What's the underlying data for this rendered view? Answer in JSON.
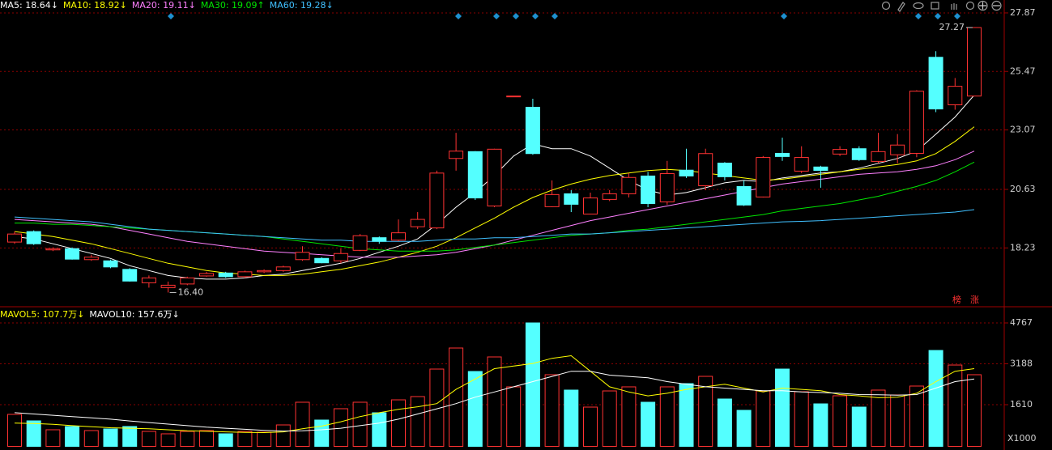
{
  "chart_data": [
    {
      "type": "candlestick",
      "ylim": [
        15.85,
        28.4
      ],
      "yticks": [
        18.23,
        20.63,
        23.07,
        25.47,
        27.87
      ],
      "up_color": "#ff3232",
      "down_color": "#54ffff",
      "grid": true,
      "open": [
        18.47,
        18.9,
        18.15,
        18.2,
        17.75,
        17.7,
        17.35,
        16.8,
        16.6,
        16.75,
        17.08,
        17.2,
        17.05,
        17.25,
        17.3,
        17.75,
        17.8,
        17.7,
        18.13,
        18.65,
        18.55,
        19.1,
        19.05,
        21.9,
        22.18,
        19.95,
        24.46,
        24.0,
        19.92,
        20.45,
        19.62,
        20.22,
        20.45,
        21.18,
        20.12,
        21.42,
        20.78,
        21.71,
        20.75,
        20.32,
        22.11,
        21.38,
        21.55,
        22.08,
        22.3,
        21.78,
        22.05,
        22.11,
        26.05,
        24.1,
        24.46
      ],
      "high": [
        18.9,
        18.95,
        18.25,
        18.25,
        17.95,
        17.75,
        17.4,
        17.1,
        16.85,
        17.05,
        17.25,
        17.25,
        17.3,
        17.35,
        17.5,
        18.3,
        17.85,
        18.2,
        18.8,
        18.7,
        19.4,
        19.7,
        21.4,
        22.95,
        22.2,
        22.3,
        24.46,
        24.35,
        21.0,
        20.6,
        20.5,
        20.6,
        21.3,
        21.35,
        21.8,
        22.3,
        22.3,
        21.75,
        21.0,
        22.0,
        22.75,
        22.4,
        21.6,
        22.4,
        22.4,
        22.95,
        22.9,
        24.7,
        26.3,
        25.2,
        27.27
      ],
      "low": [
        18.4,
        18.35,
        18.1,
        17.75,
        17.7,
        17.4,
        16.85,
        16.6,
        16.4,
        16.7,
        17.05,
        17.0,
        17.0,
        17.2,
        17.25,
        17.7,
        17.6,
        17.6,
        18.1,
        18.4,
        18.5,
        19.0,
        19.0,
        21.4,
        20.2,
        19.9,
        24.46,
        22.05,
        19.9,
        19.7,
        19.6,
        20.15,
        20.3,
        19.9,
        20.0,
        21.1,
        20.6,
        21.0,
        19.95,
        20.3,
        21.8,
        21.3,
        20.7,
        22.0,
        21.8,
        21.7,
        21.7,
        21.95,
        23.8,
        23.9,
        24.46
      ],
      "close": [
        18.8,
        18.4,
        18.2,
        17.77,
        17.85,
        17.45,
        16.87,
        17.0,
        16.7,
        17.0,
        17.18,
        17.05,
        17.25,
        17.3,
        17.45,
        18.05,
        17.62,
        18.0,
        18.73,
        18.5,
        18.85,
        19.4,
        21.3,
        22.2,
        20.28,
        22.28,
        24.46,
        22.1,
        20.42,
        20.02,
        20.28,
        20.45,
        21.12,
        20.05,
        21.28,
        21.18,
        22.1,
        21.15,
        19.99,
        21.94,
        21.98,
        21.94,
        21.41,
        22.27,
        21.85,
        22.18,
        22.45,
        24.66,
        23.93,
        24.86,
        27.27
      ],
      "ma": [
        {
          "name": "MA5: 18.64↓",
          "color": "#ffffff",
          "values": [
            18.7,
            18.6,
            18.4,
            18.2,
            18.0,
            17.8,
            17.5,
            17.3,
            17.1,
            17.0,
            16.95,
            16.95,
            17.0,
            17.1,
            17.15,
            17.3,
            17.45,
            17.6,
            17.8,
            18.05,
            18.3,
            18.6,
            19.2,
            19.9,
            20.5,
            21.2,
            22.0,
            22.5,
            22.3,
            22.3,
            22.0,
            21.5,
            21.0,
            20.6,
            20.4,
            20.5,
            20.7,
            20.9,
            21.0,
            20.95,
            21.1,
            21.2,
            21.3,
            21.35,
            21.5,
            21.7,
            21.9,
            22.2,
            22.9,
            23.6,
            24.5
          ]
        },
        {
          "name": "MA10: 18.92↓",
          "color": "#ffff00",
          "values": [
            18.9,
            18.8,
            18.7,
            18.55,
            18.4,
            18.2,
            18.0,
            17.8,
            17.6,
            17.45,
            17.3,
            17.2,
            17.15,
            17.1,
            17.1,
            17.15,
            17.25,
            17.35,
            17.5,
            17.65,
            17.85,
            18.05,
            18.3,
            18.65,
            19.05,
            19.45,
            19.9,
            20.3,
            20.6,
            20.85,
            21.05,
            21.2,
            21.3,
            21.4,
            21.45,
            21.4,
            21.3,
            21.2,
            21.1,
            21.0,
            21.05,
            21.15,
            21.25,
            21.35,
            21.45,
            21.55,
            21.65,
            21.8,
            22.1,
            22.6,
            23.2
          ]
        },
        {
          "name": "MA20: 19.11↓",
          "color": "#ff80ff",
          "values": [
            19.4,
            19.35,
            19.3,
            19.25,
            19.2,
            19.1,
            18.95,
            18.8,
            18.65,
            18.5,
            18.4,
            18.3,
            18.2,
            18.1,
            18.05,
            18.0,
            17.95,
            17.9,
            17.85,
            17.85,
            17.85,
            17.9,
            17.95,
            18.05,
            18.2,
            18.35,
            18.55,
            18.75,
            18.95,
            19.15,
            19.35,
            19.5,
            19.65,
            19.8,
            19.95,
            20.1,
            20.25,
            20.4,
            20.55,
            20.7,
            20.85,
            20.95,
            21.05,
            21.15,
            21.25,
            21.3,
            21.35,
            21.45,
            21.6,
            21.85,
            22.2
          ]
        },
        {
          "name": "MA30: 19.09↑",
          "color": "#00e600",
          "values": [
            19.25,
            19.25,
            19.2,
            19.2,
            19.15,
            19.1,
            19.05,
            19.0,
            18.95,
            18.9,
            18.85,
            18.8,
            18.75,
            18.7,
            18.6,
            18.5,
            18.4,
            18.3,
            18.2,
            18.15,
            18.1,
            18.1,
            18.1,
            18.15,
            18.25,
            18.35,
            18.45,
            18.55,
            18.65,
            18.75,
            18.8,
            18.85,
            18.95,
            19.0,
            19.1,
            19.2,
            19.3,
            19.4,
            19.5,
            19.6,
            19.75,
            19.85,
            19.95,
            20.05,
            20.2,
            20.35,
            20.55,
            20.75,
            21.0,
            21.35,
            21.75
          ]
        },
        {
          "name": "MA60: 19.28↓",
          "color": "#40c0ff",
          "values": [
            19.5,
            19.45,
            19.4,
            19.35,
            19.3,
            19.2,
            19.1,
            19.0,
            18.95,
            18.9,
            18.85,
            18.8,
            18.75,
            18.7,
            18.65,
            18.6,
            18.55,
            18.55,
            18.5,
            18.5,
            18.5,
            18.5,
            18.55,
            18.6,
            18.6,
            18.65,
            18.65,
            18.7,
            18.75,
            18.8,
            18.8,
            18.85,
            18.9,
            18.95,
            19.0,
            19.05,
            19.1,
            19.15,
            19.2,
            19.25,
            19.3,
            19.32,
            19.35,
            19.4,
            19.45,
            19.5,
            19.55,
            19.6,
            19.65,
            19.7,
            19.8
          ]
        }
      ],
      "high_label": "27.27",
      "low_label": "16.40",
      "badges": [
        "榜",
        "涨"
      ]
    },
    {
      "type": "bar",
      "ylim": [
        0,
        5361
      ],
      "yticks": [
        1610,
        3188,
        4767
      ],
      "unit_label": "X1000",
      "grid": true,
      "values": [
        1235,
        985,
        641,
        766,
        610,
        672,
        766,
        578,
        485,
        578,
        610,
        485,
        578,
        547,
        828,
        1704,
        1016,
        1454,
        1704,
        1297,
        1797,
        1923,
        2985,
        3798,
        2892,
        3454,
        2298,
        4767,
        2767,
        2173,
        1516,
        2141,
        2298,
        1704,
        2298,
        2423,
        2704,
        1829,
        1391,
        2141,
        2985,
        2110,
        1641,
        1954,
        1516,
        2173,
        1985,
        2329,
        3704,
        3141,
        2767
      ],
      "ma": [
        {
          "name": "MAVOL5: 107.7万↓",
          "color": "#ffff00",
          "values": [
            900,
            880,
            850,
            800,
            760,
            720,
            700,
            680,
            640,
            600,
            580,
            560,
            540,
            530,
            560,
            680,
            780,
            950,
            1150,
            1300,
            1430,
            1530,
            1650,
            2200,
            2600,
            3000,
            3100,
            3200,
            3400,
            3500,
            2900,
            2300,
            2100,
            1950,
            2050,
            2200,
            2300,
            2400,
            2250,
            2100,
            2250,
            2200,
            2150,
            2000,
            1950,
            1880,
            1900,
            2050,
            2500,
            2900,
            3000
          ]
        },
        {
          "name": "MAVOL10: 157.6万↓",
          "color": "#ffffff",
          "values": [
            1300,
            1250,
            1200,
            1150,
            1100,
            1050,
            980,
            920,
            860,
            800,
            740,
            700,
            660,
            620,
            590,
            600,
            640,
            700,
            800,
            900,
            1050,
            1250,
            1450,
            1650,
            1900,
            2100,
            2300,
            2500,
            2700,
            2900,
            2900,
            2750,
            2700,
            2650,
            2500,
            2400,
            2300,
            2250,
            2200,
            2150,
            2150,
            2100,
            2080,
            2050,
            2000,
            1990,
            1980,
            2000,
            2250,
            2500,
            2600
          ]
        }
      ]
    }
  ]
}
